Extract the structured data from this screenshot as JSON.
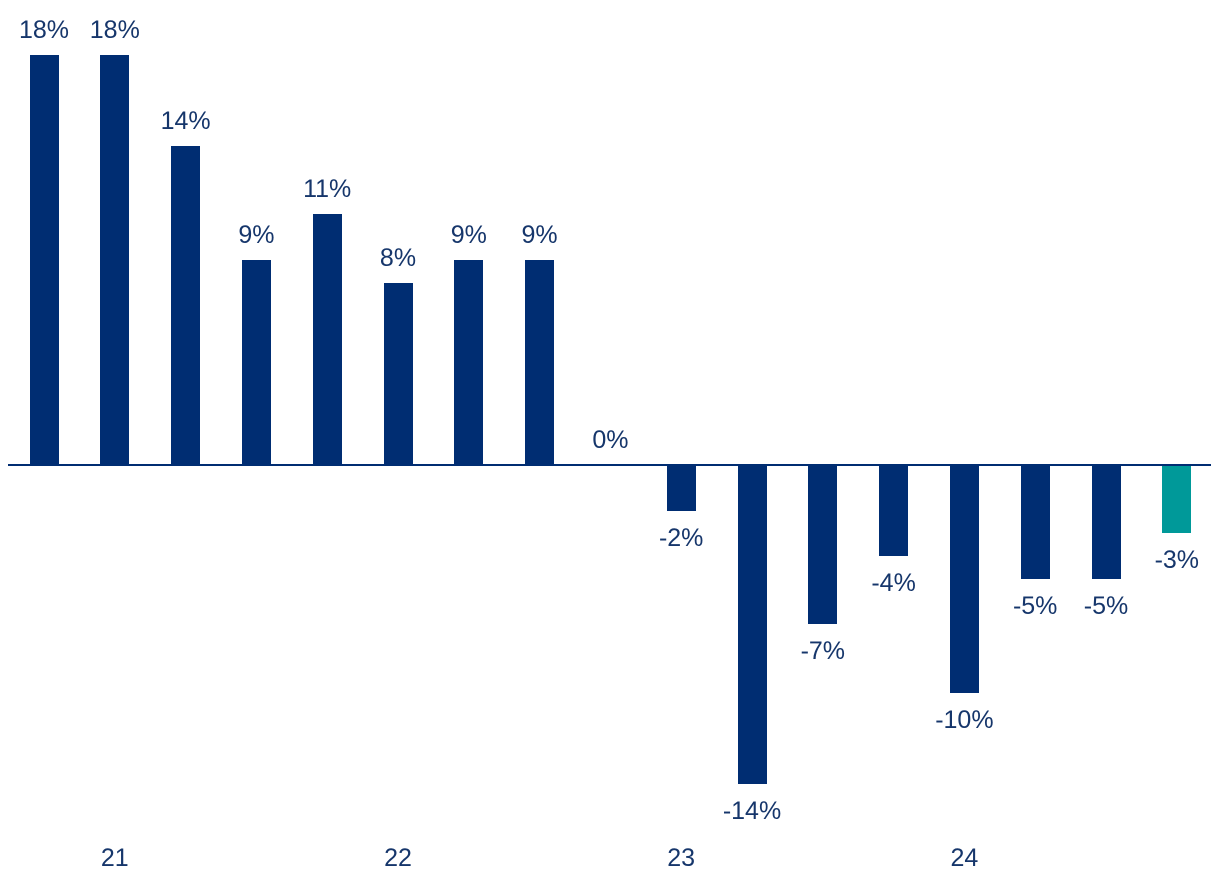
{
  "chart_data": {
    "type": "bar",
    "title": "",
    "xlabel": "",
    "ylabel": "",
    "values": [
      18,
      18,
      14,
      9,
      11,
      8,
      9,
      9,
      0,
      -2,
      -14,
      -7,
      -4,
      -10,
      -5,
      -5,
      -3
    ],
    "data_labels": [
      "18%",
      "18%",
      "14%",
      "9%",
      "11%",
      "8%",
      "9%",
      "9%",
      "0%",
      "-2%",
      "-14%",
      "-7%",
      "-4%",
      "-10%",
      "-5%",
      "-5%",
      "-3%"
    ],
    "x_ticks": [
      {
        "label": "21",
        "under_bar_index": 1
      },
      {
        "label": "22",
        "under_bar_index": 5
      },
      {
        "label": "23",
        "under_bar_index": 9
      },
      {
        "label": "24",
        "under_bar_index": 13
      }
    ],
    "highlight_index": 16,
    "ylim": [
      -16,
      19
    ],
    "grid": false,
    "legend": "none",
    "colors": {
      "bar": "#002D72",
      "highlight_bar": "#009999",
      "label_text": "#16366B",
      "axis_line": "#002D72"
    }
  }
}
